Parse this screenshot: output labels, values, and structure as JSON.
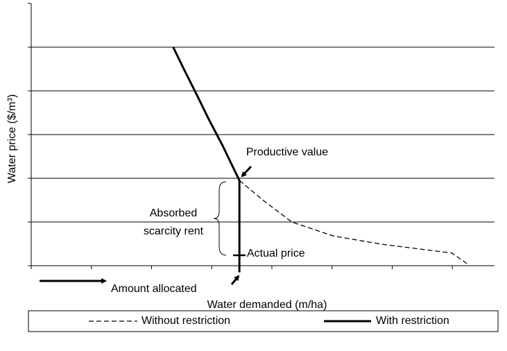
{
  "chart_data": {
    "type": "line",
    "x_label": "Water demanded (m/ha)",
    "y_label": "Water price ($/m³)",
    "xlim": [
      0,
      7.7
    ],
    "xticks": [
      0,
      1,
      2,
      3,
      4,
      5,
      6,
      7
    ],
    "ylim": [
      0,
      6
    ],
    "yticks": [
      0,
      1,
      2,
      3,
      4,
      5,
      6
    ],
    "grid": true,
    "legend": "bottom",
    "series": [
      {
        "name": "Without restriction",
        "color": "#000000",
        "dashed": true,
        "x": [
          3.46,
          3.87,
          4.33,
          5.02,
          5.83,
          6.99,
          7.24
        ],
        "values": [
          1.95,
          1.48,
          1.0,
          0.68,
          0.49,
          0.29,
          0.05
        ]
      },
      {
        "name": "With restriction",
        "color": "#000000",
        "dashed": false,
        "x": [
          2.36,
          2.54,
          2.77,
          2.94,
          3.18,
          3.46,
          3.46
        ],
        "values": [
          5.0,
          4.49,
          3.86,
          3.38,
          2.75,
          1.95,
          -0.15
        ]
      }
    ],
    "annotations": [
      "Productive value",
      "Absorbed",
      "scarcity rent",
      "Actual price",
      "Amount allocated"
    ]
  }
}
